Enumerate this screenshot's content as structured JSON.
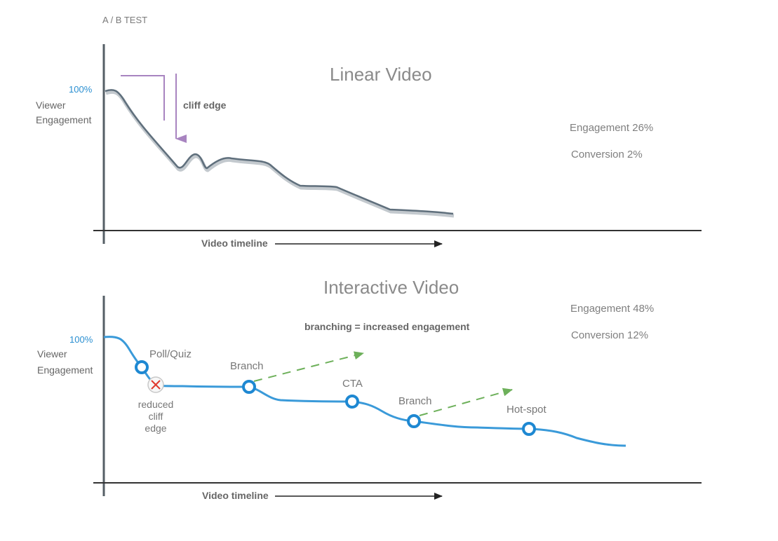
{
  "header": "A / B TEST",
  "linear": {
    "title": "Linear Video",
    "y_top_label": "100%",
    "y_label_line1": "Viewer",
    "y_label_line2": "Engagement",
    "x_label": "Video timeline",
    "annotation": "cliff edge",
    "engagement": "Engagement 26%",
    "conversion": "Conversion 2%",
    "colors": {
      "curve": "#5f6f7c",
      "arrow": "#a884c0",
      "axis": "#555f66"
    }
  },
  "interactive": {
    "title": "Interactive Video",
    "y_top_label": "100%",
    "y_label_line1": "Viewer",
    "y_label_line2": "Engagement",
    "x_label": "Video timeline",
    "note": "branching = increased engagement",
    "engagement": "Engagement 48%",
    "conversion": "Conversion 12%",
    "points": {
      "poll": "Poll/Quiz",
      "branch1": "Branch",
      "cta": "CTA",
      "branch2": "Branch",
      "hotspot": "Hot-spot"
    },
    "reduced": {
      "line1": "reduced",
      "line2": "cliff",
      "line3": "edge"
    },
    "colors": {
      "curve": "#3a9ad9",
      "dashed_arrow": "#6db05a",
      "marker_x": "#e03a2f"
    }
  }
}
